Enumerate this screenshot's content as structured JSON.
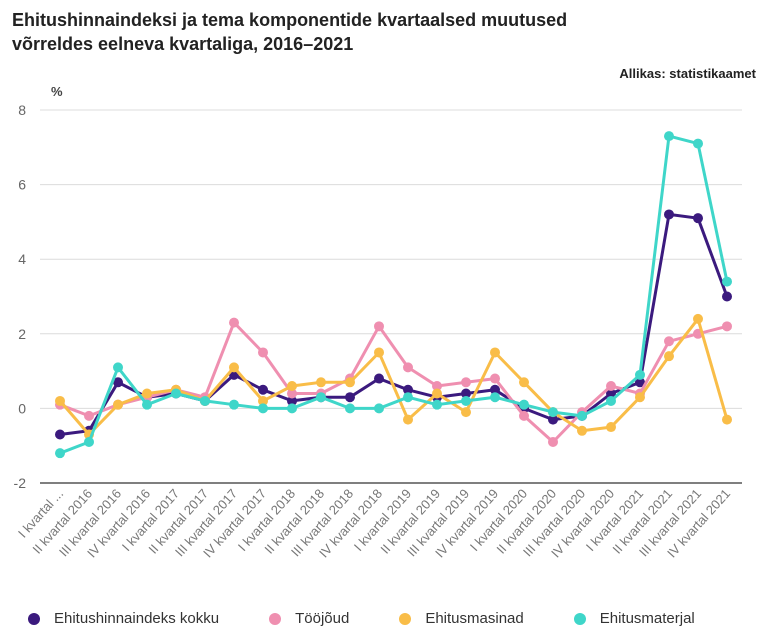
{
  "title_line1": "Ehitushinnaindeksi ja tema komponentide kvartaalsed muutused",
  "title_line2": "võrreldes eelneva kvartaliga, 2016–2021",
  "source": "Allikas: statistikaamet",
  "chart_data": {
    "type": "line",
    "title": "Ehitushinnaindeksi ja tema komponentide kvartaalsed muutused võrreldes eelneva kvartaliga, 2016–2021",
    "ylabel": "%",
    "xlabel": "",
    "ylim": [
      -2,
      8
    ],
    "yticks": [
      -2,
      0,
      2,
      4,
      6,
      8
    ],
    "grid": true,
    "legend_position": "bottom",
    "categories": [
      "I kvartal ...",
      "II kvartal 2016",
      "III kvartal 2016",
      "IV kvartal 2016",
      "I kvartal 2017",
      "II kvartal 2017",
      "III kvartal 2017",
      "IV kvartal 2017",
      "I kvartal 2018",
      "II kvartal 2018",
      "III kvartal 2018",
      "IV kvartal 2018",
      "I kvartal 2019",
      "II kvartal 2019",
      "III kvartal 2019",
      "IV kvartal 2019",
      "I kvartal 2020",
      "II kvartal 2020",
      "III kvartal 2020",
      "IV kvartal 2020",
      "I kvartal 2021",
      "II kvartal 2021",
      "III kvartal 2021",
      "IV kvartal 2021"
    ],
    "series": [
      {
        "name": "Ehitushinnaindeks kokku",
        "color": "#3b1a7e",
        "values": [
          -0.7,
          -0.6,
          0.7,
          0.3,
          0.4,
          0.2,
          0.9,
          0.5,
          0.2,
          0.3,
          0.3,
          0.8,
          0.5,
          0.3,
          0.4,
          0.5,
          0.0,
          -0.3,
          -0.2,
          0.4,
          0.7,
          5.2,
          5.1,
          3.0
        ]
      },
      {
        "name": "Tööjõud",
        "color": "#ef8fb0",
        "values": [
          0.1,
          -0.2,
          0.1,
          0.3,
          0.5,
          0.3,
          2.3,
          1.5,
          0.4,
          0.4,
          0.8,
          2.2,
          1.1,
          0.6,
          0.7,
          0.8,
          -0.2,
          -0.9,
          -0.1,
          0.6,
          0.4,
          1.8,
          2.0,
          2.2
        ]
      },
      {
        "name": "Ehitusmasinad",
        "color": "#f9bd48",
        "values": [
          0.2,
          -0.7,
          0.1,
          0.4,
          0.5,
          0.2,
          1.1,
          0.2,
          0.6,
          0.7,
          0.7,
          1.5,
          -0.3,
          0.4,
          -0.1,
          1.5,
          0.7,
          -0.1,
          -0.6,
          -0.5,
          0.3,
          1.4,
          2.4,
          -0.3
        ]
      },
      {
        "name": "Ehitusmaterjal",
        "color": "#3fd6c9",
        "values": [
          -1.2,
          -0.9,
          1.1,
          0.1,
          0.4,
          0.2,
          0.1,
          0.0,
          0.0,
          0.3,
          0.0,
          0.0,
          0.3,
          0.1,
          0.2,
          0.3,
          0.1,
          -0.1,
          -0.2,
          0.2,
          0.9,
          7.3,
          7.1,
          3.4
        ]
      }
    ]
  }
}
